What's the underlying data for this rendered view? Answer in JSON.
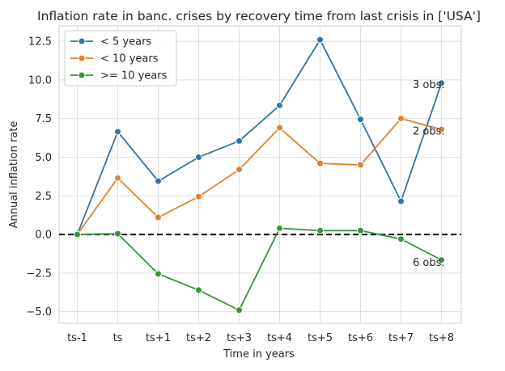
{
  "chart_data": {
    "type": "line",
    "title": "Inflation rate in banc. crises by recovery time from last crisis in ['USA']",
    "xlabel": "Time in years",
    "ylabel": "Annual inflation rate",
    "categories": [
      "ts-1",
      "ts",
      "ts+1",
      "ts+2",
      "ts+3",
      "ts+4",
      "ts+5",
      "ts+6",
      "ts+7",
      "ts+8"
    ],
    "ylim": [
      -5.75,
      13.5
    ],
    "yticks": [
      -5.0,
      -2.5,
      0.0,
      2.5,
      5.0,
      7.5,
      10.0,
      12.5
    ],
    "ytick_labels": [
      "−5.0",
      "−2.5",
      "0.0",
      "2.5",
      "5.0",
      "7.5",
      "10.0",
      "12.5"
    ],
    "grid": true,
    "legend_position": "upper-left",
    "reference_line": {
      "y": 0,
      "style": "dashed",
      "color": "#000000"
    },
    "series": [
      {
        "name": "< 5 years",
        "color": "#3274a1",
        "values": [
          0.0,
          6.65,
          3.45,
          5.0,
          6.05,
          8.35,
          12.6,
          7.45,
          2.15,
          9.8
        ]
      },
      {
        "name": "< 10 years",
        "color": "#e1812c",
        "values": [
          0.0,
          3.65,
          1.1,
          2.45,
          4.2,
          6.9,
          4.6,
          4.5,
          7.5,
          6.8
        ]
      },
      {
        "name": ">= 10 years",
        "color": "#3a923a",
        "values": [
          0.0,
          0.05,
          -2.55,
          -3.6,
          -4.9,
          0.4,
          0.25,
          0.25,
          -0.3,
          -1.65
        ]
      }
    ],
    "annotations": [
      {
        "text": "3 obs.",
        "x": "ts+8",
        "y": 9.7
      },
      {
        "text": "2 obs.",
        "x": "ts+8",
        "y": 6.7
      },
      {
        "text": "6 obs.",
        "x": "ts+8",
        "y": -1.8
      }
    ]
  }
}
